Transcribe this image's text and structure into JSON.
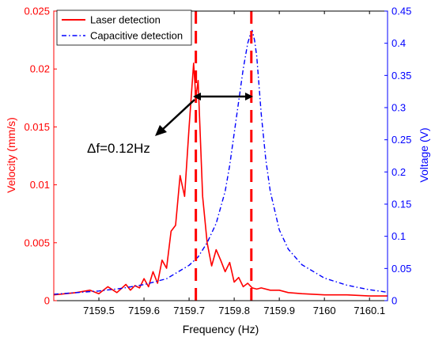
{
  "chart_data": {
    "type": "line",
    "xlabel": "Frequency (Hz)",
    "ylabel_left": "Velocity (mm/s)",
    "ylabel_right": "Voltage (V)",
    "xlim": [
      7159.4,
      7160.14
    ],
    "ylim_left": [
      0,
      0.025
    ],
    "ylim_right": [
      0,
      0.45
    ],
    "x_ticks": [
      "7159.5",
      "7159.6",
      "7159.7",
      "7159.8",
      "7159.9",
      "7160",
      "7160.1"
    ],
    "x_tick_values": [
      7159.5,
      7159.6,
      7159.7,
      7159.8,
      7159.9,
      7160.0,
      7160.1
    ],
    "y_left_ticks": [
      "0",
      "0.005",
      "0.01",
      "0.015",
      "0.02",
      "0.025"
    ],
    "y_left_tick_values": [
      0,
      0.005,
      0.01,
      0.015,
      0.02,
      0.025
    ],
    "y_right_ticks": [
      "0",
      "0.05",
      "0.1",
      "0.15",
      "0.2",
      "0.25",
      "0.3",
      "0.35",
      "0.4",
      "0.45"
    ],
    "y_right_tick_values": [
      0,
      0.05,
      0.1,
      0.15,
      0.2,
      0.25,
      0.3,
      0.35,
      0.4,
      0.45
    ],
    "legend_placement": "top-left",
    "series": [
      {
        "name": "Laser detection",
        "axis": "left",
        "color": "#ff0000",
        "style": "solid",
        "x": [
          7159.4,
          7159.45,
          7159.48,
          7159.5,
          7159.52,
          7159.54,
          7159.56,
          7159.57,
          7159.58,
          7159.59,
          7159.6,
          7159.61,
          7159.62,
          7159.63,
          7159.64,
          7159.65,
          7159.66,
          7159.67,
          7159.68,
          7159.69,
          7159.7,
          7159.71,
          7159.715,
          7159.72,
          7159.73,
          7159.74,
          7159.75,
          7159.76,
          7159.77,
          7159.78,
          7159.79,
          7159.8,
          7159.81,
          7159.82,
          7159.83,
          7159.84,
          7159.85,
          7159.86,
          7159.88,
          7159.9,
          7159.92,
          7159.95,
          7160.0,
          7160.05,
          7160.1,
          7160.14
        ],
        "y": [
          0.0005,
          0.0007,
          0.0009,
          0.0006,
          0.0012,
          0.0007,
          0.0014,
          0.0009,
          0.0013,
          0.0011,
          0.0019,
          0.0012,
          0.0025,
          0.0015,
          0.0035,
          0.0028,
          0.006,
          0.0065,
          0.0108,
          0.009,
          0.015,
          0.0205,
          0.0175,
          0.019,
          0.009,
          0.005,
          0.003,
          0.0044,
          0.0035,
          0.0025,
          0.0033,
          0.0016,
          0.002,
          0.0012,
          0.0015,
          0.0011,
          0.001,
          0.0011,
          0.0009,
          0.0009,
          0.0007,
          0.0006,
          0.0005,
          0.0005,
          0.0004,
          0.0004
        ]
      },
      {
        "name": "Capacitive detection",
        "axis": "right",
        "color": "#0000ff",
        "style": "dashdot",
        "x": [
          7159.4,
          7159.5,
          7159.55,
          7159.6,
          7159.65,
          7159.7,
          7159.72,
          7159.74,
          7159.76,
          7159.78,
          7159.79,
          7159.8,
          7159.81,
          7159.82,
          7159.83,
          7159.835,
          7159.84,
          7159.845,
          7159.85,
          7159.86,
          7159.87,
          7159.88,
          7159.9,
          7159.92,
          7159.95,
          7160.0,
          7160.05,
          7160.1,
          7160.14
        ],
        "y": [
          0.01,
          0.015,
          0.019,
          0.025,
          0.034,
          0.055,
          0.068,
          0.09,
          0.12,
          0.17,
          0.21,
          0.26,
          0.31,
          0.36,
          0.4,
          0.412,
          0.42,
          0.405,
          0.38,
          0.29,
          0.22,
          0.17,
          0.11,
          0.08,
          0.056,
          0.035,
          0.024,
          0.017,
          0.013
        ]
      }
    ],
    "markers": [
      {
        "x": 7159.715,
        "color": "#ff0000",
        "style": "dashed"
      },
      {
        "x": 7159.838,
        "color": "#ff0000",
        "style": "dashed"
      }
    ],
    "annotations": [
      {
        "text": "Δf=0.12Hz"
      }
    ]
  }
}
